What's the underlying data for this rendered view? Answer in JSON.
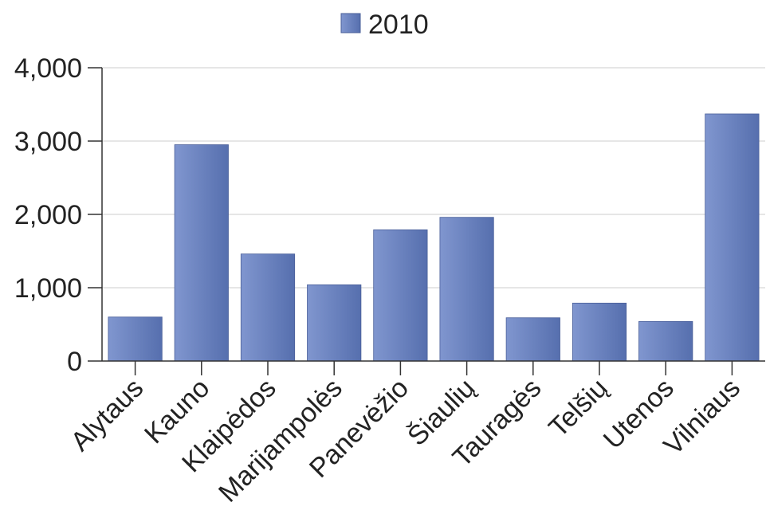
{
  "chart_data": {
    "type": "bar",
    "categories": [
      "Alytaus",
      "Kauno",
      "Klaipėdos",
      "Marijampolės",
      "Panevėžio",
      "Šiaulių",
      "Tauragės",
      "Telšių",
      "Utenos",
      "Vilniaus"
    ],
    "series": [
      {
        "name": "2010",
        "values": [
          600,
          2950,
          1460,
          1040,
          1790,
          1960,
          590,
          790,
          540,
          3370
        ]
      }
    ],
    "title": "",
    "xlabel": "",
    "ylabel": "",
    "ylim": [
      0,
      4000
    ],
    "yticks": [
      0,
      1000,
      2000,
      3000,
      4000
    ],
    "ytick_labels": [
      "0",
      "1,000",
      "2,000",
      "3,000",
      "4,000"
    ],
    "grid": true,
    "legend_position": "top-center",
    "colors": {
      "bar_light": "#8096cf",
      "bar_dark": "#566fae",
      "grid": "#cccccc",
      "axis": "#333333",
      "text": "#222222"
    }
  }
}
